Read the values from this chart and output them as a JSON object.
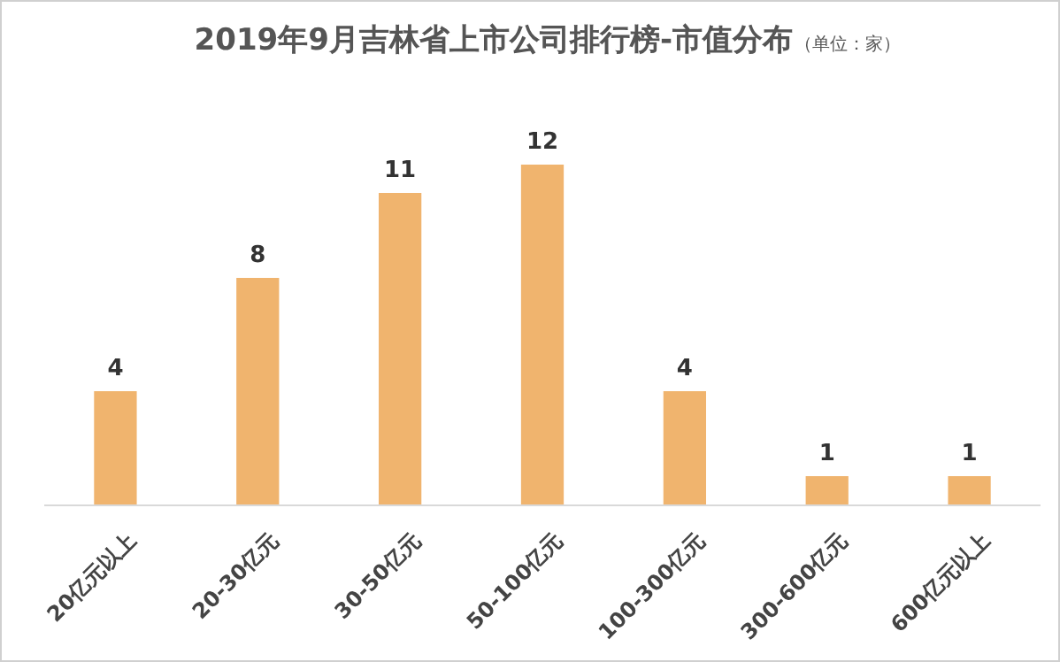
{
  "chart_data": {
    "type": "bar",
    "title": "2019年9月吉林省上市公司排行榜-市值分布",
    "subtitle": "（单位：家）",
    "categories": [
      "20亿元以上",
      "20-30亿元",
      "30-50亿元",
      "50-100亿元",
      "100-300亿元",
      "300-600亿元",
      "600亿元以上"
    ],
    "values": [
      4,
      8,
      11,
      12,
      4,
      1,
      1
    ],
    "color": "#f0b46e",
    "data_labels": true
  }
}
